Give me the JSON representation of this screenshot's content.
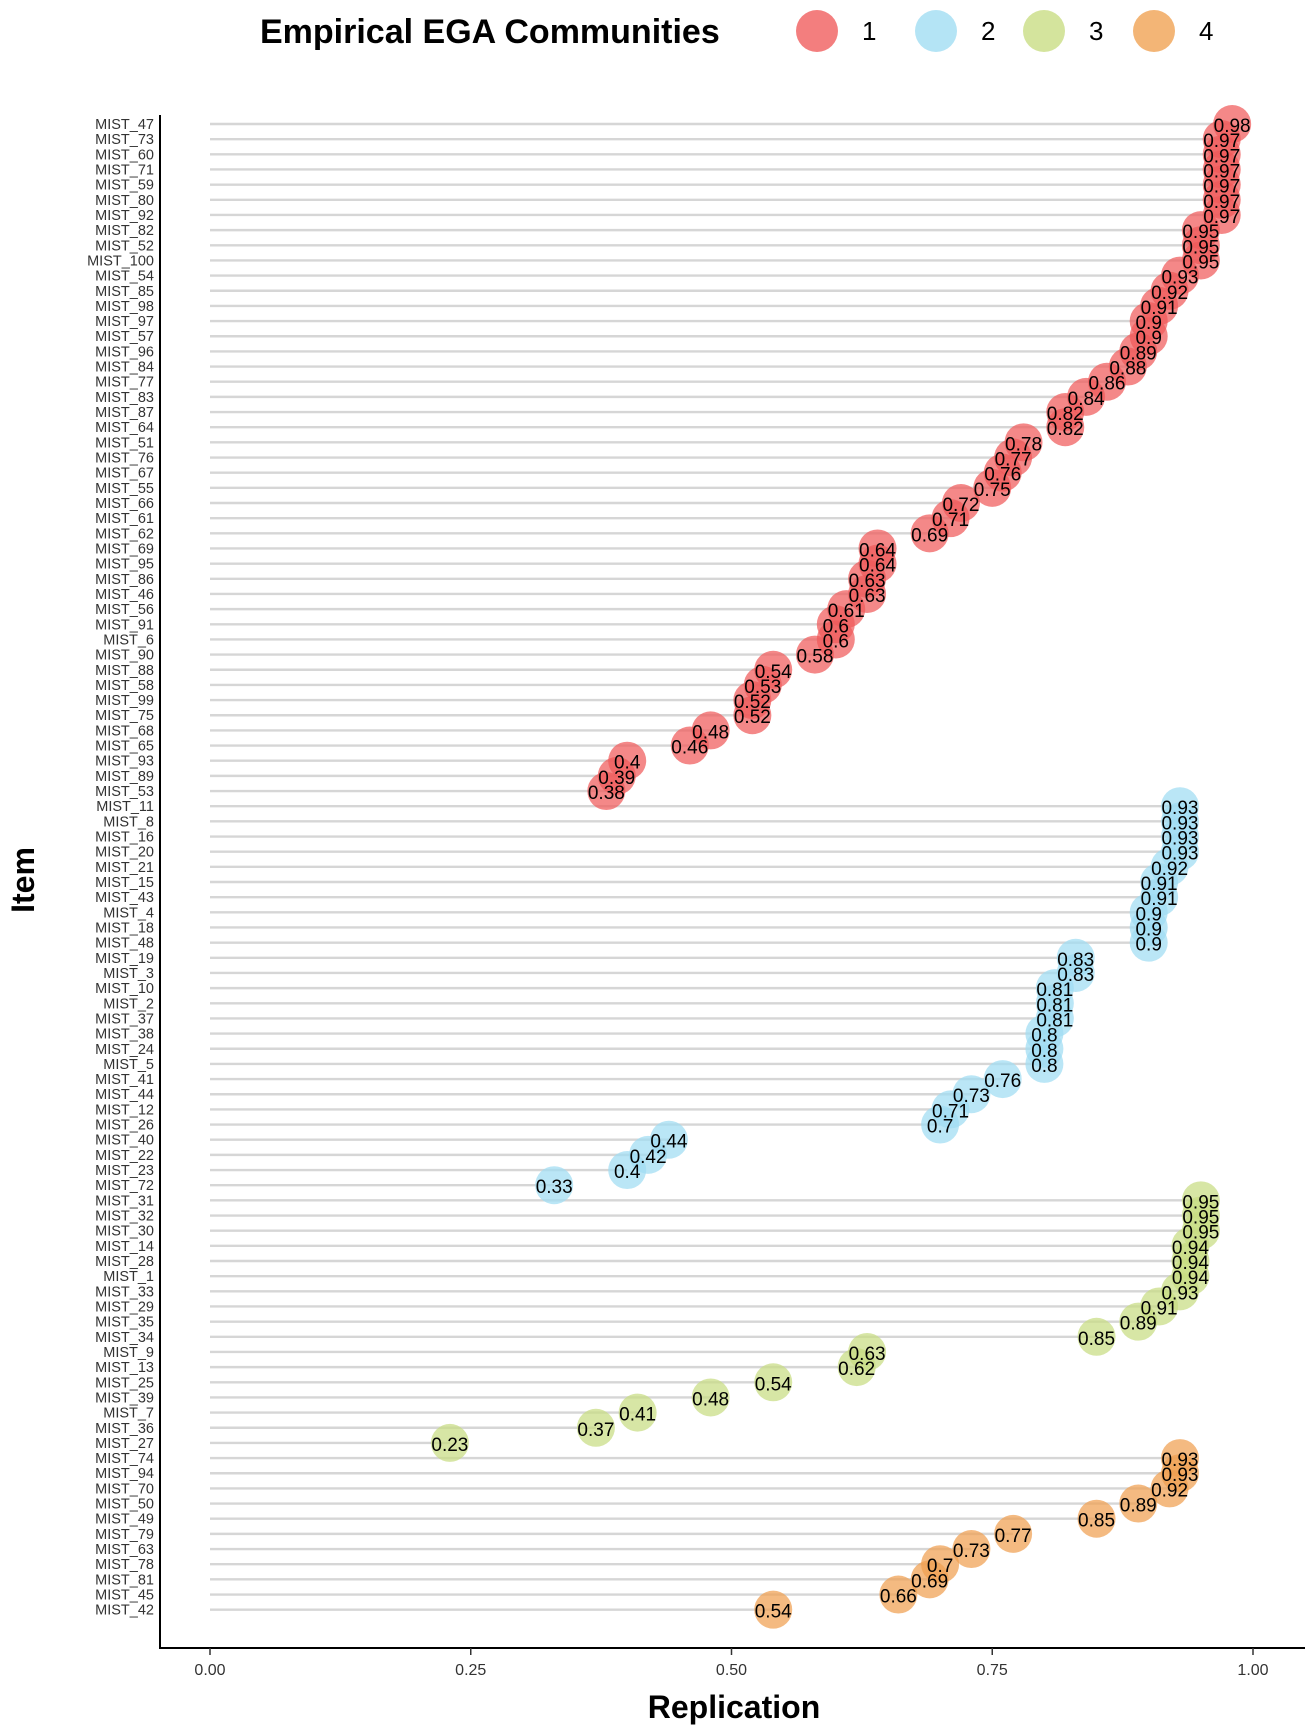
{
  "chart_data": {
    "type": "scatter",
    "legend": {
      "title": "Empirical EGA Communities",
      "position": "top",
      "entries": [
        {
          "label": "1",
          "color": "#F05A5A"
        },
        {
          "label": "2",
          "color": "#9FDDF2"
        },
        {
          "label": "3",
          "color": "#C8DC82"
        },
        {
          "label": "4",
          "color": "#F0A050"
        }
      ]
    },
    "xlabel": "Replication",
    "ylabel": "Item",
    "xlim": [
      0,
      1
    ],
    "xticks": [
      "0.00",
      "0.25",
      "0.50",
      "0.75",
      "1.00"
    ],
    "grid": "horizontal segments from x=0 to each point",
    "series": [
      {
        "name": "1",
        "items": [
          "MIST_47",
          "MIST_73",
          "MIST_60",
          "MIST_71",
          "MIST_59",
          "MIST_80",
          "MIST_92",
          "MIST_82",
          "MIST_52",
          "MIST_100",
          "MIST_54",
          "MIST_85",
          "MIST_98",
          "MIST_97",
          "MIST_57",
          "MIST_96",
          "MIST_84",
          "MIST_77",
          "MIST_83",
          "MIST_87",
          "MIST_64",
          "MIST_51",
          "MIST_76",
          "MIST_67",
          "MIST_55",
          "MIST_66",
          "MIST_61",
          "MIST_62",
          "MIST_69",
          "MIST_95",
          "MIST_86",
          "MIST_46",
          "MIST_56",
          "MIST_91",
          "MIST_6",
          "MIST_90",
          "MIST_88",
          "MIST_58",
          "MIST_99",
          "MIST_75",
          "MIST_68",
          "MIST_65",
          "MIST_93",
          "MIST_89",
          "MIST_53"
        ],
        "values": [
          0.98,
          0.97,
          0.97,
          0.97,
          0.97,
          0.97,
          0.97,
          0.95,
          0.95,
          0.95,
          0.93,
          0.92,
          0.91,
          0.9,
          0.9,
          0.89,
          0.88,
          0.86,
          0.84,
          0.82,
          0.82,
          0.78,
          0.77,
          0.76,
          0.75,
          0.72,
          0.71,
          0.69,
          0.64,
          0.64,
          0.63,
          0.63,
          0.61,
          0.6,
          0.6,
          0.58,
          0.54,
          0.53,
          0.52,
          0.52,
          0.48,
          0.46,
          0.4,
          0.39,
          0.38
        ],
        "labels": [
          "0.98",
          "0.97",
          "0.97",
          "0.97",
          "0.97",
          "0.97",
          "0.97",
          "0.95",
          "0.95",
          "0.95",
          "0.93",
          "0.92",
          "0.91",
          "0.9",
          "0.9",
          "0.89",
          "0.88",
          "0.86",
          "0.84",
          "0.82",
          "0.82",
          "0.78",
          "0.77",
          "0.76",
          "0.75",
          "0.72",
          "0.71",
          "0.69",
          "0.64",
          "0.64",
          "0.63",
          "0.63",
          "0.61",
          "0.6",
          "0.6",
          "0.58",
          "0.54",
          "0.53",
          "0.52",
          "0.52",
          "0.48",
          "0.46",
          "0.4",
          "0.39",
          "0.38"
        ]
      },
      {
        "name": "2",
        "items": [
          "MIST_11",
          "MIST_8",
          "MIST_16",
          "MIST_20",
          "MIST_21",
          "MIST_15",
          "MIST_43",
          "MIST_4",
          "MIST_18",
          "MIST_48",
          "MIST_19",
          "MIST_3",
          "MIST_10",
          "MIST_2",
          "MIST_37",
          "MIST_38",
          "MIST_24",
          "MIST_5",
          "MIST_41",
          "MIST_44",
          "MIST_12",
          "MIST_26",
          "MIST_40",
          "MIST_22",
          "MIST_23",
          "MIST_72"
        ],
        "values": [
          0.93,
          0.93,
          0.93,
          0.93,
          0.92,
          0.91,
          0.91,
          0.9,
          0.9,
          0.9,
          0.83,
          0.83,
          0.81,
          0.81,
          0.81,
          0.8,
          0.8,
          0.8,
          0.76,
          0.73,
          0.71,
          0.7,
          0.44,
          0.42,
          0.4,
          0.33
        ],
        "labels": [
          "0.93",
          "0.93",
          "0.93",
          "0.93",
          "0.92",
          "0.91",
          "0.91",
          "0.9",
          "0.9",
          "0.9",
          "0.83",
          "0.83",
          "0.81",
          "0.81",
          "0.81",
          "0.8",
          "0.8",
          "0.8",
          "0.76",
          "0.73",
          "0.71",
          "0.7",
          "0.44",
          "0.42",
          "0.4",
          "0.33"
        ]
      },
      {
        "name": "3",
        "items": [
          "MIST_31",
          "MIST_32",
          "MIST_30",
          "MIST_14",
          "MIST_28",
          "MIST_1",
          "MIST_33",
          "MIST_29",
          "MIST_35",
          "MIST_34",
          "MIST_9",
          "MIST_13",
          "MIST_25",
          "MIST_39",
          "MIST_7",
          "MIST_36",
          "MIST_27"
        ],
        "values": [
          0.95,
          0.95,
          0.95,
          0.94,
          0.94,
          0.94,
          0.93,
          0.91,
          0.89,
          0.85,
          0.63,
          0.62,
          0.54,
          0.48,
          0.41,
          0.37,
          0.23
        ],
        "labels": [
          "0.95",
          "0.95",
          "0.95",
          "0.94",
          "0.94",
          "0.94",
          "0.93",
          "0.91",
          "0.89",
          "0.85",
          "0.63",
          "0.62",
          "0.54",
          "0.48",
          "0.41",
          "0.37",
          "0.23"
        ]
      },
      {
        "name": "4",
        "items": [
          "MIST_74",
          "MIST_94",
          "MIST_70",
          "MIST_50",
          "MIST_49",
          "MIST_79",
          "MIST_63",
          "MIST_78",
          "MIST_81",
          "MIST_45",
          "MIST_42"
        ],
        "values": [
          0.93,
          0.93,
          0.92,
          0.89,
          0.85,
          0.77,
          0.73,
          0.7,
          0.69,
          0.66,
          0.54
        ],
        "labels": [
          "0.93",
          "0.93",
          "0.92",
          "0.89",
          "0.85",
          "0.77",
          "0.73",
          "0.7",
          "0.69",
          "0.66",
          "0.54"
        ]
      }
    ]
  }
}
